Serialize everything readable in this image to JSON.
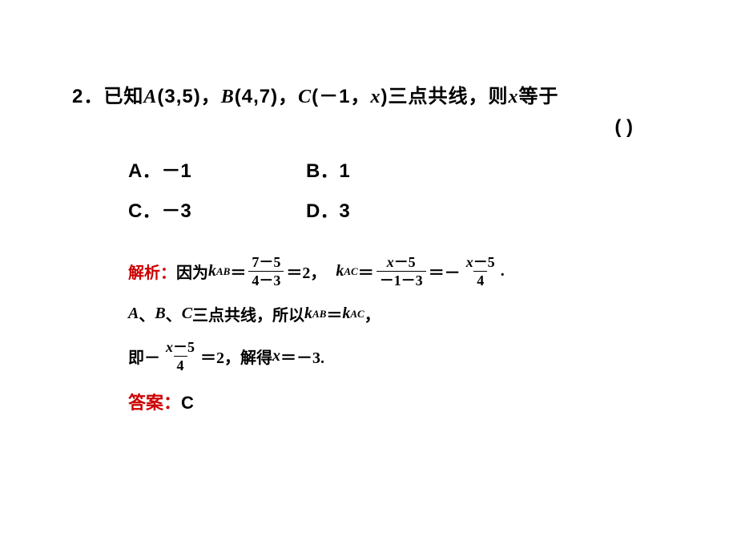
{
  "question": {
    "number": "2．",
    "prefix": "已知",
    "pointA_name": "A",
    "pointA_coords": "(3,5)",
    "sep1": "，",
    "pointB_name": "B",
    "pointB_coords": "(4,7)",
    "sep2": "，",
    "pointC_name": "C",
    "pointC_coords_open": "(－1，",
    "pointC_var": "x",
    "pointC_coords_close": ")",
    "suffix1": "三点共线，则",
    "var_x": "x",
    "suffix2": "等于",
    "paren": "(        )"
  },
  "options": {
    "A": "A．－1",
    "B": "B．1",
    "C": "C．－3",
    "D": "D．3"
  },
  "solution": {
    "label": "解析：",
    "line1_pre": "因为 ",
    "k": "k",
    "sub_AB": "AB",
    "eq": "＝",
    "frac1_num": "7－5",
    "frac1_den": "4－3",
    "eq2": "＝2，",
    "sub_AC": "AC",
    "frac2_num_var": "x",
    "frac2_num_rest": "－5",
    "frac2_den": "－1－3",
    "eq_neg": "＝－",
    "frac3_num_var": "x",
    "frac3_num_rest": "－5",
    "frac3_den": "4",
    "period": ".",
    "line2_A": "A",
    "line2_sep1": "、",
    "line2_B": "B",
    "line2_sep2": "、",
    "line2_C": "C",
    "line2_text": " 三点共线，所以 ",
    "comma": "，",
    "line3_pre": "即－",
    "line3_eq2": "＝2，解得 ",
    "line3_var": "x",
    "line3_result": "＝－3."
  },
  "answer": {
    "label": "答案：",
    "value": "C"
  },
  "colors": {
    "text": "#000000",
    "accent": "#cc0000",
    "background": "#ffffff"
  }
}
